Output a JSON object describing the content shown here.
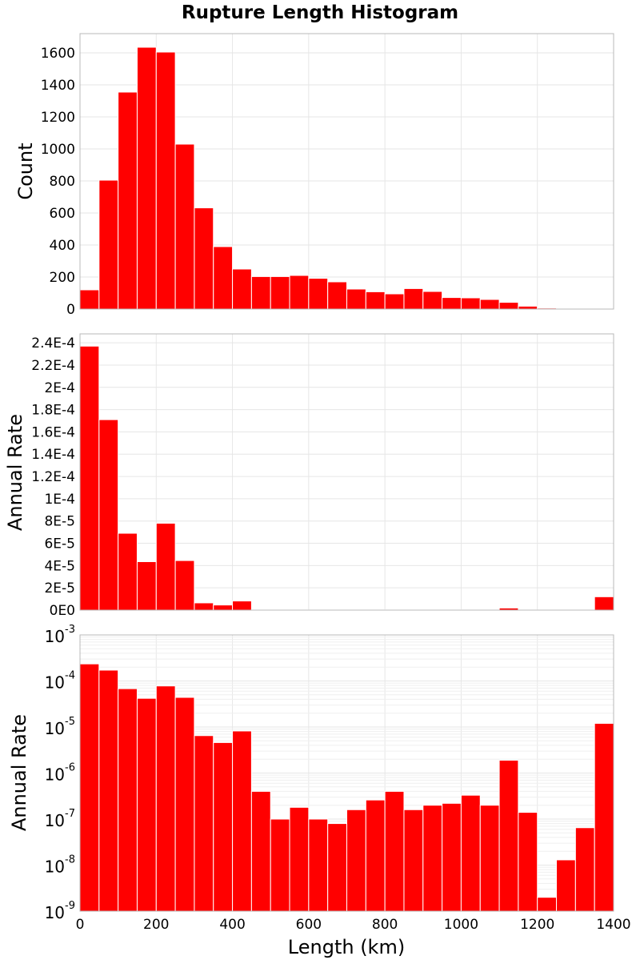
{
  "chart_data": {
    "type": "bar",
    "title": "Rupture Length Histogram",
    "xlabel": "Length (km)",
    "bin_width": 50,
    "x": [
      25,
      75,
      125,
      175,
      225,
      275,
      325,
      375,
      425,
      475,
      525,
      575,
      625,
      675,
      725,
      775,
      825,
      875,
      925,
      975,
      1025,
      1075,
      1125,
      1175,
      1225,
      1275,
      1325,
      1375
    ],
    "xlim": [
      0,
      1400
    ],
    "xticks": [
      "0",
      "200",
      "400",
      "600",
      "800",
      "1000",
      "1200",
      "1400"
    ],
    "panels": [
      {
        "ylabel": "Count",
        "scale": "linear",
        "ylim": [
          0,
          1720
        ],
        "yticks": [
          {
            "v": 0,
            "label": "0"
          },
          {
            "v": 200,
            "label": "200"
          },
          {
            "v": 400,
            "label": "400"
          },
          {
            "v": 600,
            "label": "600"
          },
          {
            "v": 800,
            "label": "800"
          },
          {
            "v": 1000,
            "label": "1000"
          },
          {
            "v": 1200,
            "label": "1200"
          },
          {
            "v": 1400,
            "label": "1400"
          },
          {
            "v": 1600,
            "label": "1600"
          }
        ],
        "values": [
          120,
          805,
          1355,
          1635,
          1605,
          1030,
          632,
          390,
          250,
          203,
          203,
          210,
          192,
          170,
          125,
          108,
          95,
          128,
          110,
          72,
          70,
          60,
          42,
          18,
          6,
          3,
          3,
          3
        ]
      },
      {
        "ylabel": "Annual Rate",
        "scale": "linear",
        "ylim": [
          0,
          0.000248
        ],
        "yticks": [
          {
            "v": 0,
            "label": "0E0"
          },
          {
            "v": 2e-05,
            "label": "2E-5"
          },
          {
            "v": 4e-05,
            "label": "4E-5"
          },
          {
            "v": 6e-05,
            "label": "6E-5"
          },
          {
            "v": 8e-05,
            "label": "8E-5"
          },
          {
            "v": 0.0001,
            "label": "1E-4"
          },
          {
            "v": 0.00012,
            "label": "1.2E-4"
          },
          {
            "v": 0.00014,
            "label": "1.4E-4"
          },
          {
            "v": 0.00016,
            "label": "1.6E-4"
          },
          {
            "v": 0.00018,
            "label": "1.8E-4"
          },
          {
            "v": 0.0002,
            "label": "2E-4"
          },
          {
            "v": 0.00022,
            "label": "2.2E-4"
          },
          {
            "v": 0.00024,
            "label": "2.4E-4"
          }
        ],
        "values": [
          0.000237,
          0.000171,
          6.9e-05,
          4.35e-05,
          7.8e-05,
          4.45e-05,
          6.5e-06,
          4.6e-06,
          8.2e-06,
          4e-07,
          1e-07,
          1.8e-07,
          1e-07,
          8e-08,
          1.6e-07,
          2.6e-07,
          4e-07,
          1.6e-07,
          2e-07,
          2.2e-07,
          3.3e-07,
          2e-07,
          1.9e-06,
          1.4e-07,
          2e-09,
          1.3e-08,
          6.5e-08,
          1.2e-05
        ]
      },
      {
        "ylabel": "Annual Rate",
        "scale": "log",
        "ylim": [
          1e-09,
          0.001
        ],
        "yticks": [
          {
            "v": 1e-09,
            "base": "10",
            "exp": "-9"
          },
          {
            "v": 1e-08,
            "base": "10",
            "exp": "-8"
          },
          {
            "v": 1e-07,
            "base": "10",
            "exp": "-7"
          },
          {
            "v": 1e-06,
            "base": "10",
            "exp": "-6"
          },
          {
            "v": 1e-05,
            "base": "10",
            "exp": "-5"
          },
          {
            "v": 0.0001,
            "base": "10",
            "exp": "-4"
          },
          {
            "v": 0.001,
            "base": "10",
            "exp": "-3"
          }
        ],
        "values": [
          0.000235,
          0.000172,
          6.8e-05,
          4.2e-05,
          7.8e-05,
          4.4e-05,
          6.5e-06,
          4.6e-06,
          8.2e-06,
          4e-07,
          1e-07,
          1.8e-07,
          1e-07,
          8e-08,
          1.6e-07,
          2.6e-07,
          4e-07,
          1.6e-07,
          2e-07,
          2.2e-07,
          3.3e-07,
          2e-07,
          1.9e-06,
          1.4e-07,
          2e-09,
          1.3e-08,
          6.5e-08,
          1.2e-05
        ]
      }
    ],
    "bar_color": "#ff0000",
    "grid": true
  }
}
